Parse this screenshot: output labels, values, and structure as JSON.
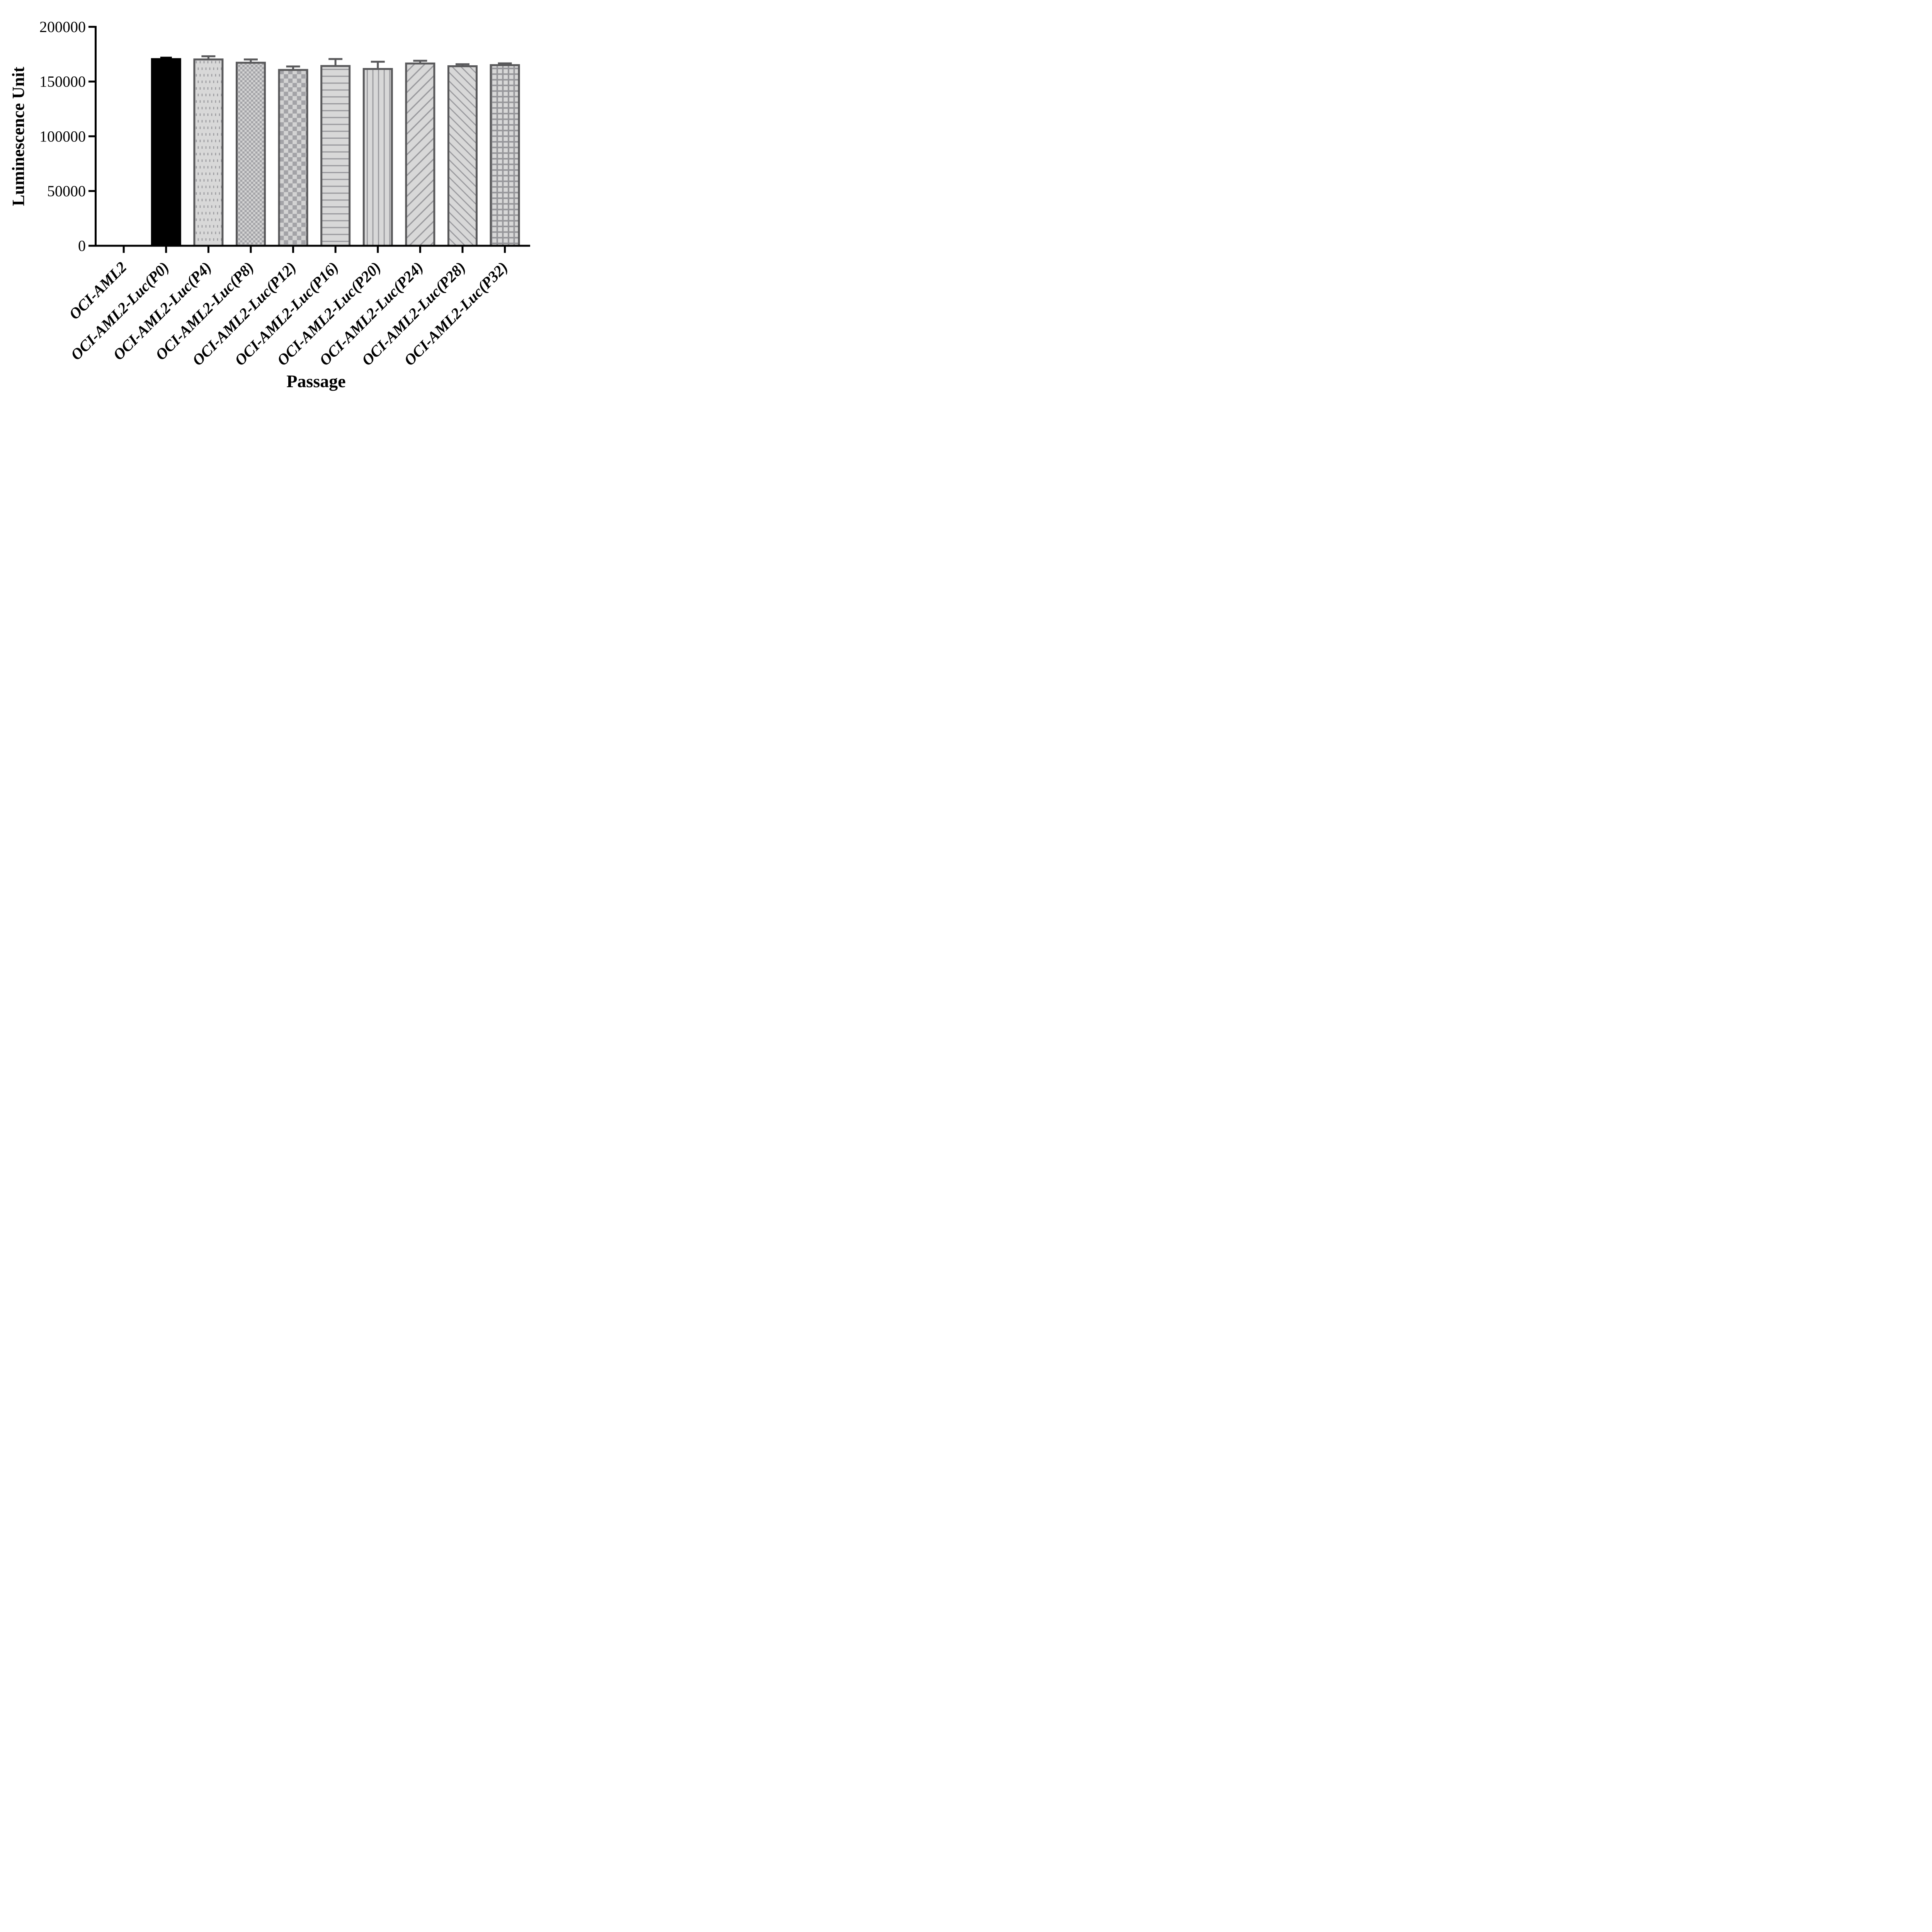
{
  "chart_data": {
    "type": "bar",
    "title": "",
    "xlabel": "Passage",
    "ylabel": "Luminescence Unit",
    "ylim": [
      0,
      200000
    ],
    "yticks": [
      0,
      50000,
      100000,
      150000,
      200000
    ],
    "ytick_labels": [
      "0",
      "50000",
      "100000",
      "150000",
      "200000"
    ],
    "categories": [
      "OCI-AML2",
      "OCI-AML2-Luc(P0)",
      "OCI-AML2-Luc(P4)",
      "OCI-AML2-Luc(P8)",
      "OCI-AML2-Luc(P12)",
      "OCI-AML2-Luc(P16)",
      "OCI-AML2-Luc(P20)",
      "OCI-AML2-Luc(P24)",
      "OCI-AML2-Luc(P28)",
      "OCI-AML2-Luc(P32)"
    ],
    "values": [
      0,
      170500,
      170200,
      167200,
      160600,
      164200,
      161500,
      166500,
      164000,
      165000
    ],
    "errors": [
      0,
      1300,
      2900,
      3000,
      3200,
      6400,
      6600,
      2500,
      1800,
      1600
    ],
    "bar_patterns": [
      "none",
      "solid-black",
      "dash-rows",
      "checker-fine",
      "checker-coarse",
      "h-lines",
      "v-lines",
      "diag-forward",
      "diag-backward",
      "grid"
    ],
    "legend": "none",
    "grid": "off",
    "colors": {
      "bar_fill": "#d8d8d8",
      "pattern_line": "#9a9a9e",
      "checker": "#a3a3a7",
      "bar_border": "#59595b",
      "black_bar": "#000000",
      "axis": "#000000"
    }
  }
}
